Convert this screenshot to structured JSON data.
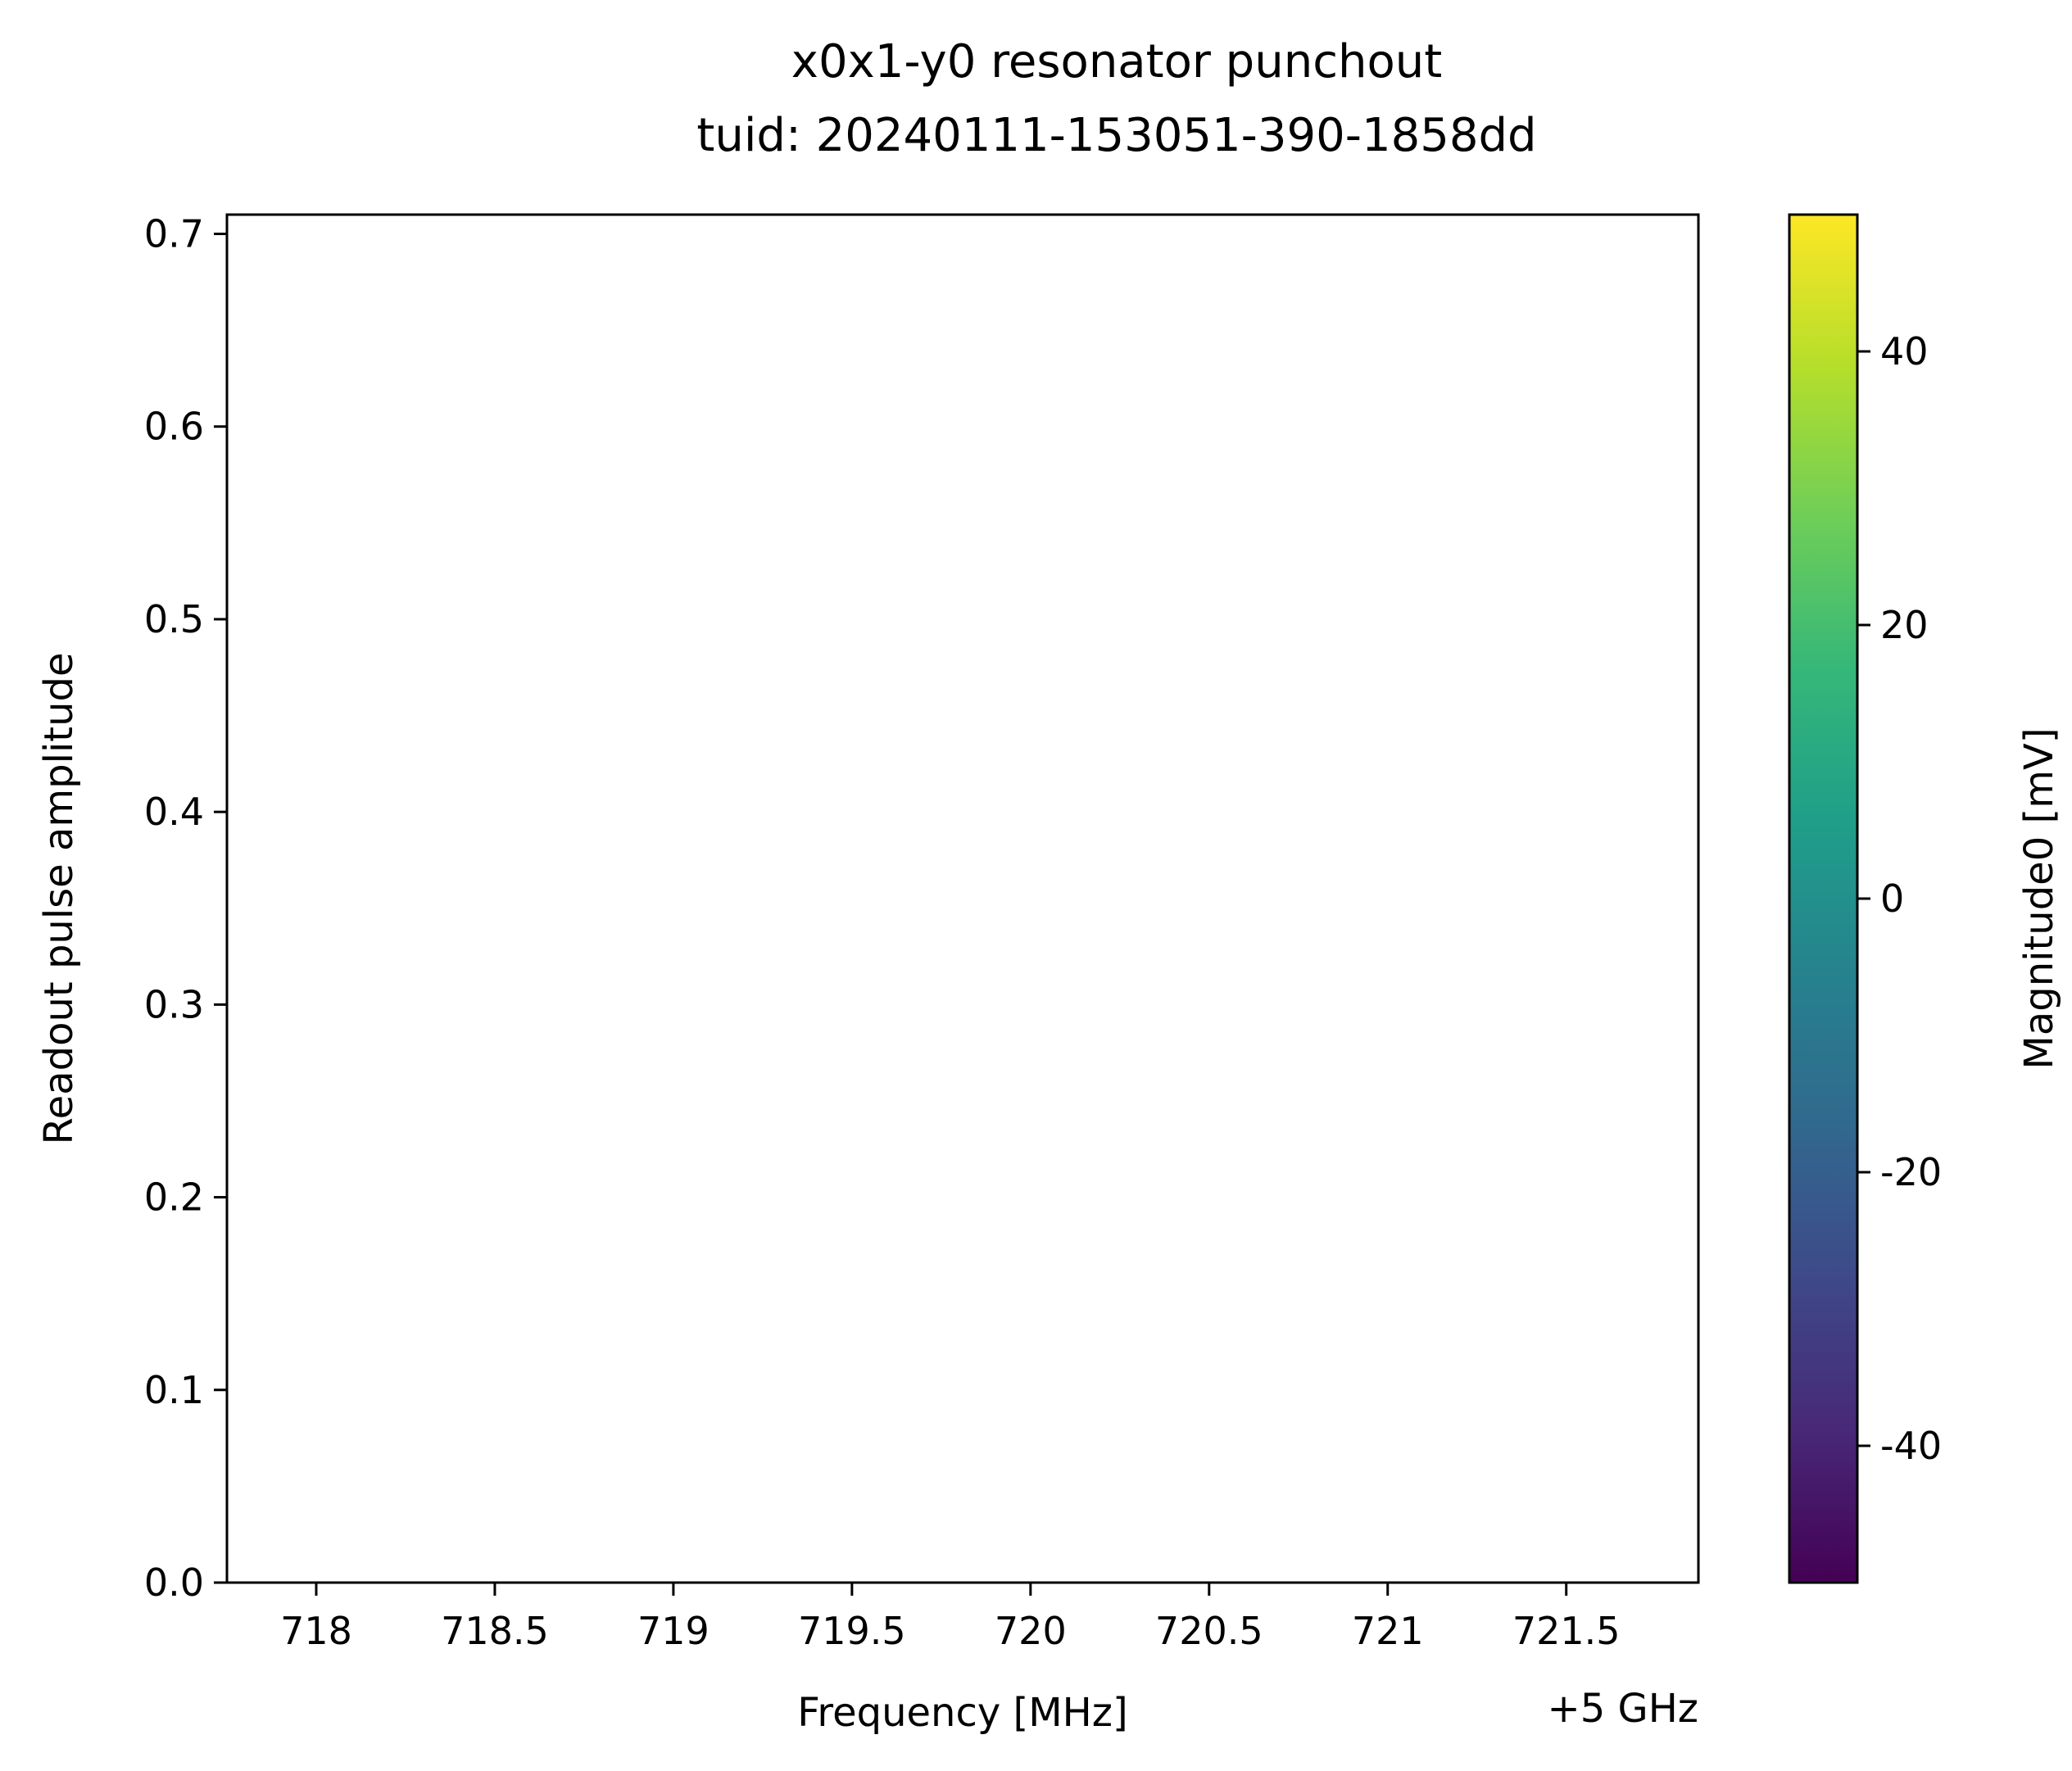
{
  "chart_data": {
    "type": "heatmap",
    "title": "x0x1-y0 resonator punchout",
    "subtitle": "tuid: 20240111-153051-390-1858dd",
    "xlabel": "Frequency [MHz]",
    "x_offset_label": "+5 GHz",
    "ylabel": "Readout pulse amplitude",
    "xlim": [
      717.75,
      721.87
    ],
    "ylim": [
      0.0,
      0.71
    ],
    "xticks": [
      718,
      718.5,
      719,
      719.5,
      720,
      720.5,
      721,
      721.5
    ],
    "xtick_labels": [
      "718",
      "718.5",
      "719",
      "719.5",
      "720",
      "720.5",
      "721",
      "721.5"
    ],
    "yticks": [
      0.0,
      0.1,
      0.2,
      0.3,
      0.4,
      0.5,
      0.6,
      0.7
    ],
    "ytick_labels": [
      "0.0",
      "0.1",
      "0.2",
      "0.3",
      "0.4",
      "0.5",
      "0.6",
      "0.7"
    ],
    "values": [],
    "colorbar": {
      "label": "Magnitude0 [mV]",
      "colormap": "viridis",
      "range": [
        -50,
        50
      ],
      "ticks": [
        40,
        20,
        0,
        -20,
        -40
      ],
      "tick_labels": [
        "40",
        "20",
        "0",
        "-20",
        "-40"
      ],
      "colors": [
        "#440154",
        "#482878",
        "#3e4989",
        "#31688e",
        "#26828e",
        "#1f9e89",
        "#35b779",
        "#6ece58",
        "#b5de2b",
        "#fde725"
      ]
    },
    "grid": false
  }
}
